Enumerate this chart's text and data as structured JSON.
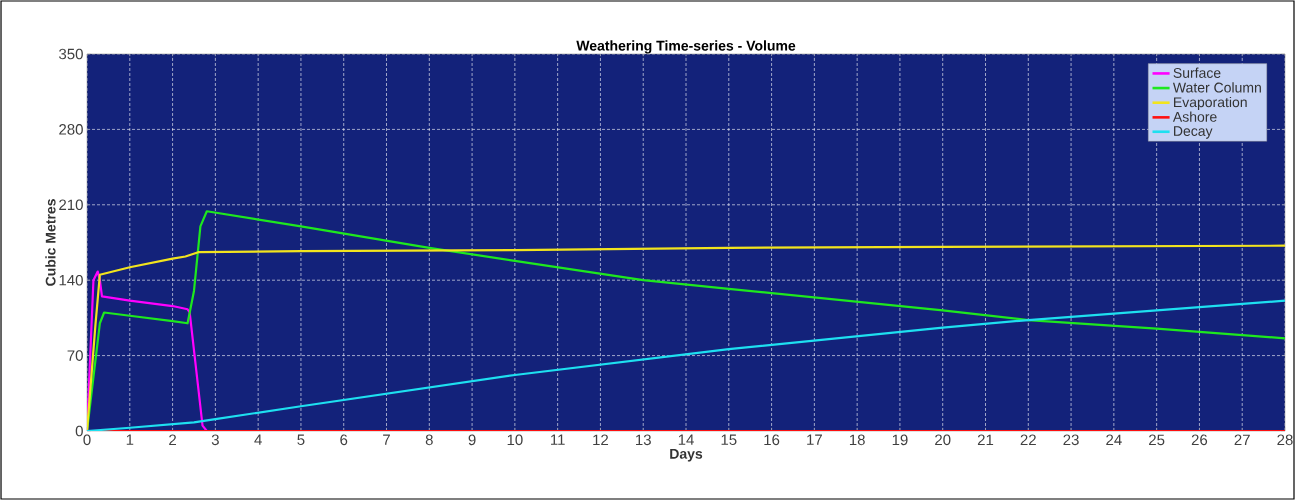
{
  "chart_data": {
    "type": "line",
    "title": "Weathering Time-series - Volume",
    "xlabel": "Days",
    "ylabel": "Cubic Metres",
    "xlim": [
      0,
      28
    ],
    "ylim": [
      0,
      350
    ],
    "xticks": [
      0,
      1,
      2,
      3,
      4,
      5,
      6,
      7,
      8,
      9,
      10,
      11,
      12,
      13,
      14,
      15,
      16,
      17,
      18,
      19,
      20,
      21,
      22,
      23,
      24,
      25,
      26,
      27,
      28
    ],
    "yticks": [
      0,
      70,
      140,
      210,
      280,
      350
    ],
    "grid": true,
    "legend": "top right",
    "line_style": "solid",
    "marker": "none",
    "series": [
      {
        "name": "Surface",
        "color": "#ff00ff",
        "x": [
          0,
          0.15,
          0.25,
          0.3,
          0.35,
          1,
          2,
          2.35,
          2.4,
          2.6,
          2.7,
          2.8
        ],
        "values": [
          0,
          140,
          148,
          140,
          125,
          121,
          116,
          113,
          110,
          40,
          5,
          0
        ]
      },
      {
        "name": "Water Column",
        "color": "#1ee81e",
        "x": [
          0,
          0.3,
          0.4,
          1,
          2,
          2.35,
          2.5,
          2.65,
          2.8,
          5,
          8,
          10,
          13,
          15,
          20,
          22,
          25,
          28
        ],
        "values": [
          0,
          100,
          110,
          107,
          102,
          100,
          130,
          190,
          204,
          190,
          170,
          158,
          140,
          132,
          112,
          103,
          95,
          86
        ]
      },
      {
        "name": "Evaporation",
        "color": "#f2e41e",
        "x": [
          0,
          0.2,
          0.3,
          1,
          2,
          2.3,
          2.6,
          5,
          10,
          15,
          20,
          28
        ],
        "values": [
          0,
          100,
          145,
          152,
          160,
          162,
          166,
          167,
          168,
          170,
          171,
          172
        ]
      },
      {
        "name": "Ashore",
        "color": "#ff1010",
        "x": [
          0,
          28
        ],
        "values": [
          0,
          0
        ]
      },
      {
        "name": "Decay",
        "color": "#1ee0f0",
        "x": [
          0,
          1,
          2.5,
          3,
          5,
          10,
          15,
          20,
          22,
          25,
          28
        ],
        "values": [
          0,
          3,
          8,
          11,
          23,
          52,
          76,
          96,
          103,
          112,
          121
        ]
      }
    ]
  }
}
